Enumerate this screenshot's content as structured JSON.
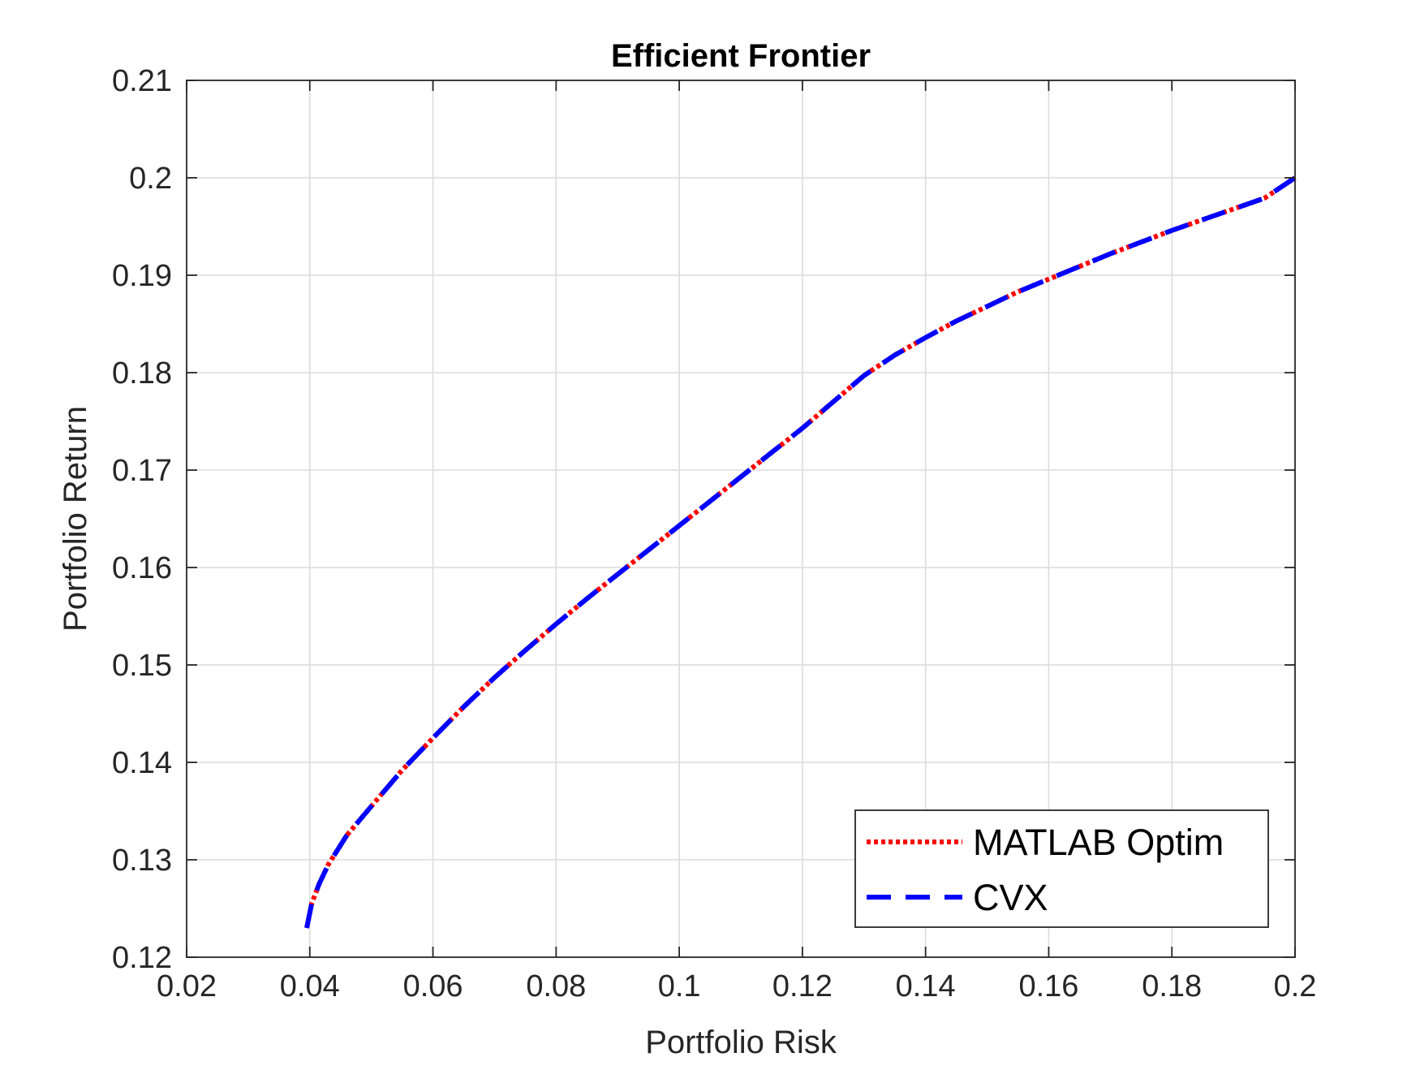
{
  "chart_data": {
    "type": "line",
    "title": "Efficient Frontier",
    "xlabel": "Portfolio Risk",
    "ylabel": "Portfolio Return",
    "xlim": [
      0.02,
      0.2
    ],
    "ylim": [
      0.12,
      0.21
    ],
    "xticks": [
      0.02,
      0.04,
      0.06,
      0.08,
      0.1,
      0.12,
      0.14,
      0.16,
      0.18,
      0.2
    ],
    "xtick_labels": [
      "0.02",
      "0.04",
      "0.06",
      "0.08",
      "0.1",
      "0.12",
      "0.14",
      "0.16",
      "0.18",
      "0.2"
    ],
    "yticks": [
      0.12,
      0.13,
      0.14,
      0.15,
      0.16,
      0.17,
      0.18,
      0.19,
      0.2,
      0.21
    ],
    "ytick_labels": [
      "0.12",
      "0.13",
      "0.14",
      "0.15",
      "0.16",
      "0.17",
      "0.18",
      "0.19",
      "0.2",
      "0.21"
    ],
    "grid": true,
    "legend_position": "bottom-right",
    "series": [
      {
        "name": "MATLAB Optim",
        "color": "#ff0000",
        "style": "dotted",
        "x": [
          0.0395,
          0.0403,
          0.0415,
          0.043,
          0.046,
          0.05,
          0.055,
          0.06,
          0.065,
          0.07,
          0.075,
          0.08,
          0.085,
          0.09,
          0.095,
          0.1,
          0.105,
          0.11,
          0.115,
          0.12,
          0.125,
          0.13,
          0.135,
          0.14,
          0.145,
          0.15,
          0.155,
          0.16,
          0.165,
          0.17,
          0.175,
          0.18,
          0.185,
          0.19,
          0.195,
          0.2
        ],
        "y": [
          0.123,
          0.1255,
          0.1275,
          0.1295,
          0.1325,
          0.1355,
          0.1392,
          0.1425,
          0.1457,
          0.1487,
          0.1515,
          0.1542,
          0.1568,
          0.1593,
          0.1618,
          0.1643,
          0.1668,
          0.1693,
          0.1718,
          0.1743,
          0.177,
          0.1797,
          0.1818,
          0.1836,
          0.1853,
          0.1868,
          0.1883,
          0.1896,
          0.1909,
          0.1922,
          0.1934,
          0.1946,
          0.1957,
          0.1968,
          0.1979,
          0.2
        ]
      },
      {
        "name": "CVX",
        "color": "#0000ff",
        "style": "dashed",
        "x": [
          0.0395,
          0.0403,
          0.0415,
          0.043,
          0.046,
          0.05,
          0.055,
          0.06,
          0.065,
          0.07,
          0.075,
          0.08,
          0.085,
          0.09,
          0.095,
          0.1,
          0.105,
          0.11,
          0.115,
          0.12,
          0.125,
          0.13,
          0.135,
          0.14,
          0.145,
          0.15,
          0.155,
          0.16,
          0.165,
          0.17,
          0.175,
          0.18,
          0.185,
          0.19,
          0.195,
          0.2
        ],
        "y": [
          0.123,
          0.1255,
          0.1275,
          0.1295,
          0.1325,
          0.1355,
          0.1392,
          0.1425,
          0.1457,
          0.1487,
          0.1515,
          0.1542,
          0.1568,
          0.1593,
          0.1618,
          0.1643,
          0.1668,
          0.1693,
          0.1718,
          0.1743,
          0.177,
          0.1797,
          0.1818,
          0.1836,
          0.1853,
          0.1868,
          0.1883,
          0.1896,
          0.1909,
          0.1922,
          0.1934,
          0.1946,
          0.1957,
          0.1968,
          0.1979,
          0.2
        ]
      }
    ]
  }
}
